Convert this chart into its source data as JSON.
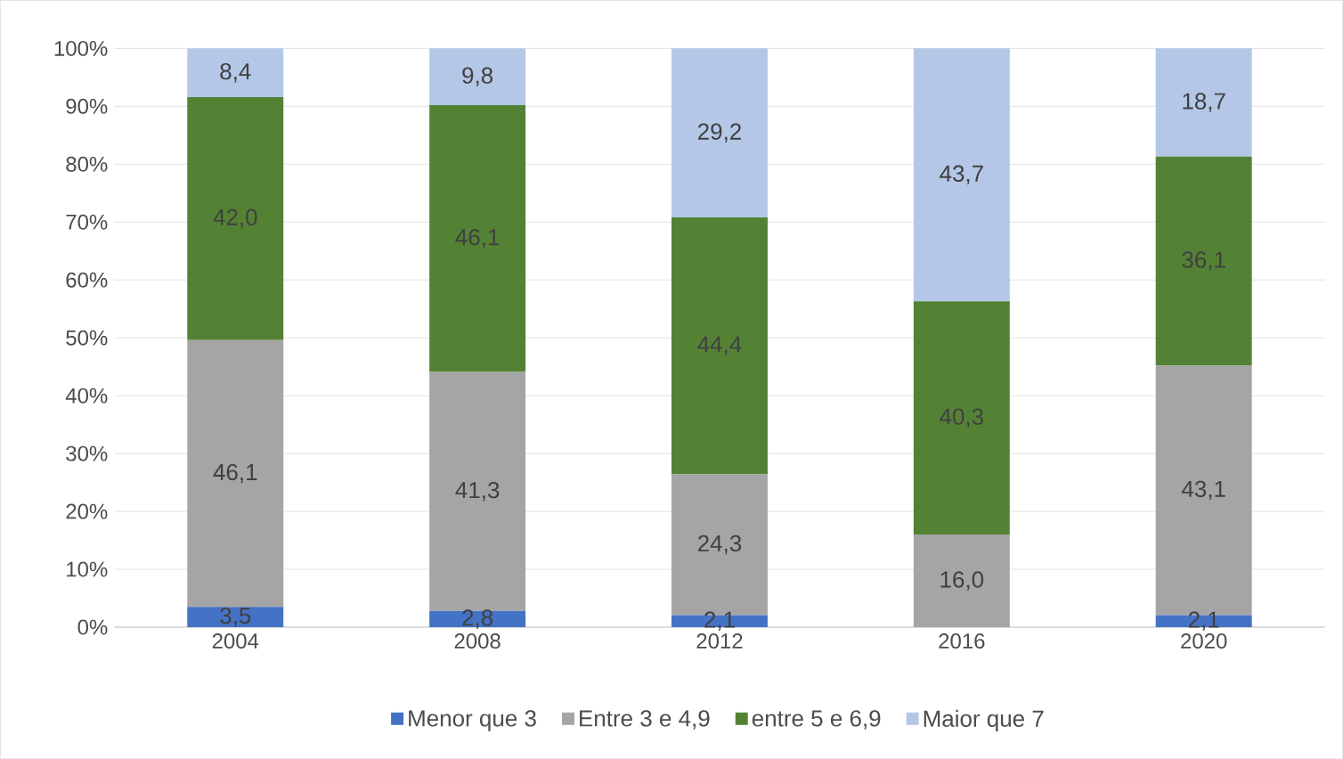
{
  "chart_data": {
    "type": "bar",
    "stacked": true,
    "categories": [
      "2004",
      "2008",
      "2012",
      "2016",
      "2020"
    ],
    "series": [
      {
        "name": "Menor que 3",
        "color": "#4472c4",
        "values": [
          3.5,
          2.8,
          2.1,
          null,
          2.1
        ],
        "value_labels": [
          "3,5",
          "2,8",
          "2,1",
          null,
          "2,1"
        ]
      },
      {
        "name": "Entre 3 e 4,9",
        "color": "#a5a5a5",
        "values": [
          46.1,
          41.3,
          24.3,
          16.0,
          43.1
        ],
        "value_labels": [
          "46,1",
          "41,3",
          "24,3",
          "16,0",
          "43,1"
        ]
      },
      {
        "name": "entre 5 e 6,9",
        "color": "#548235",
        "values": [
          42.0,
          46.1,
          44.4,
          40.3,
          36.1
        ],
        "value_labels": [
          "42,0",
          "46,1",
          "44,4",
          "40,3",
          "36,1"
        ]
      },
      {
        "name": "Maior que 7",
        "color": "#b4c7e7",
        "values": [
          8.4,
          9.8,
          29.2,
          43.7,
          18.7
        ],
        "value_labels": [
          "8,4",
          "9,8",
          "29,2",
          "43,7",
          "18,7"
        ]
      }
    ],
    "ylim": [
      0,
      100
    ],
    "yticks": [
      {
        "value": 0,
        "label": "0%"
      },
      {
        "value": 10,
        "label": "10%"
      },
      {
        "value": 20,
        "label": "20%"
      },
      {
        "value": 30,
        "label": "30%"
      },
      {
        "value": 40,
        "label": "40%"
      },
      {
        "value": 50,
        "label": "50%"
      },
      {
        "value": 60,
        "label": "60%"
      },
      {
        "value": 70,
        "label": "70%"
      },
      {
        "value": 80,
        "label": "80%"
      },
      {
        "value": 90,
        "label": "90%"
      },
      {
        "value": 100,
        "label": "100%"
      }
    ],
    "grid": "y",
    "legend": "bottom"
  }
}
